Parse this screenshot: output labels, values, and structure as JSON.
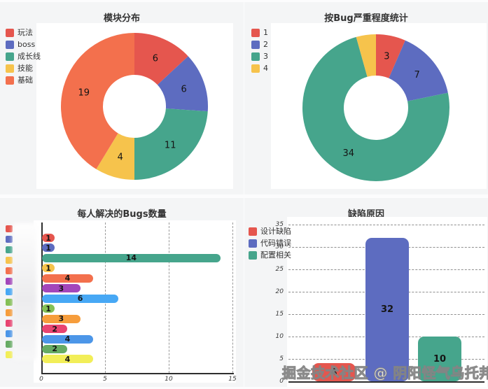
{
  "watermark": "掘金技术社区 @ 阴阳怪气乌托邦",
  "chart_data": [
    {
      "type": "donut",
      "title": "模块分布",
      "labels": [
        "玩法",
        "boss",
        "成长线",
        "技能",
        "基础"
      ],
      "values": [
        6,
        6,
        11,
        4,
        19
      ],
      "value_labels": [
        "6",
        "6",
        "11",
        "4",
        "19"
      ],
      "colors": [
        "#e5564e",
        "#5d6cc0",
        "#46a58c",
        "#f6c34c",
        "#f3704d"
      ],
      "legend_position": "left",
      "start_angle_deg": 0,
      "direction": "clockwise"
    },
    {
      "type": "donut",
      "title": "按Bug严重程度统计",
      "labels": [
        "1",
        "2",
        "3",
        "4"
      ],
      "values": [
        3,
        7,
        34,
        2
      ],
      "value_labels": [
        "3",
        "7",
        "34",
        ""
      ],
      "colors": [
        "#e5564e",
        "#5d6cc0",
        "#46a58c",
        "#f6c34c"
      ],
      "legend_position": "left",
      "start_angle_deg": 0,
      "direction": "clockwise"
    },
    {
      "type": "hbar",
      "title": "每人解决的Bugs数量",
      "labels_blurred": true,
      "values": [
        1,
        1,
        14,
        1,
        4,
        3,
        6,
        1,
        3,
        2,
        4,
        2,
        4
      ],
      "value_labels": [
        "1",
        "1",
        "14",
        "1",
        "4",
        "3",
        "6",
        "1",
        "3",
        "2",
        "4",
        "2",
        "4"
      ],
      "colors": [
        "#e5564e",
        "#5d6cc0",
        "#46a58c",
        "#f6c34c",
        "#f3704d",
        "#a346bb",
        "#47a8f5",
        "#84c056",
        "#f69d3c",
        "#e84471",
        "#4c96e8",
        "#66ab63",
        "#f2ee58"
      ],
      "x_ticks": [
        0,
        5,
        10,
        15
      ],
      "xlim": [
        0,
        15.5
      ],
      "grid": "dashed-vertical",
      "legend_position": "left"
    },
    {
      "type": "vbar",
      "title": "缺陷原因",
      "labels": [
        "设计缺陷",
        "代码错误",
        "配置相关"
      ],
      "values": [
        4,
        32,
        10
      ],
      "value_labels": [
        "4",
        "32",
        "10"
      ],
      "colors": [
        "#e5564e",
        "#5d6cc0",
        "#46a58c"
      ],
      "y_ticks": [
        0,
        5,
        10,
        15,
        20,
        25,
        30,
        35
      ],
      "ylim": [
        0,
        35
      ],
      "grid": "dashed-horizontal",
      "legend_position": "left"
    }
  ]
}
